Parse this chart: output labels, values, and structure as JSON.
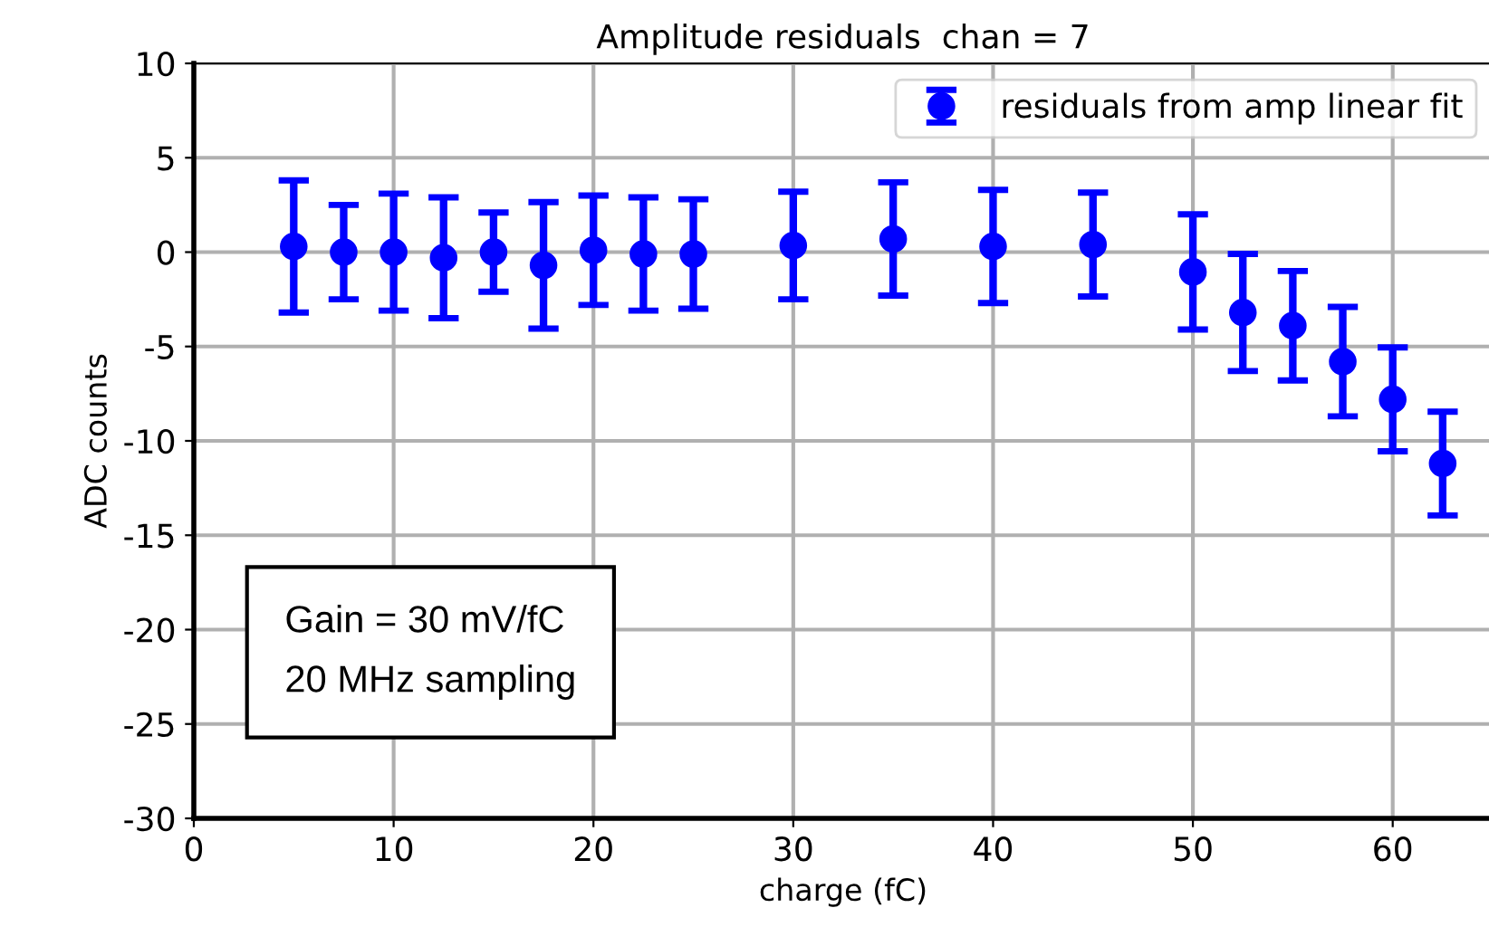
{
  "chart_data": {
    "type": "scatter",
    "title": "Amplitude residuals  chan = 7",
    "xlabel": "charge (fC)",
    "ylabel": "ADC counts",
    "x": [
      5,
      7.5,
      10,
      12.5,
      15,
      17.5,
      20,
      22.5,
      25,
      30,
      35,
      40,
      45,
      50,
      52.5,
      55,
      57.5,
      60,
      62.5
    ],
    "series": [
      {
        "name": "residuals from amp linear fit",
        "color": "#0000ff",
        "values": [
          0.3,
          0,
          0,
          -0.3,
          0,
          -0.7,
          0.1,
          -0.1,
          -0.1,
          0.35,
          0.7,
          0.3,
          0.4,
          -1.05,
          -3.2,
          -3.9,
          -5.8,
          -7.8,
          -11.2
        ],
        "errors": [
          3.5,
          2.5,
          3.1,
          3.2,
          2.1,
          3.35,
          2.9,
          3.0,
          2.9,
          2.85,
          3.0,
          3.0,
          2.75,
          3.05,
          3.1,
          2.9,
          2.9,
          2.75,
          2.75
        ]
      }
    ],
    "xlim": [
      0,
      65
    ],
    "xticks": [
      0,
      10,
      20,
      30,
      40,
      50,
      60
    ],
    "ylim": [
      -30,
      10
    ],
    "yticks": [
      -30,
      -25,
      -20,
      -15,
      -10,
      -5,
      0,
      5,
      10
    ],
    "grid": true,
    "legend": "top right",
    "marker": "circle",
    "annotations": [
      "Gain = 30 mV/fC\n20 MHz sampling"
    ]
  }
}
